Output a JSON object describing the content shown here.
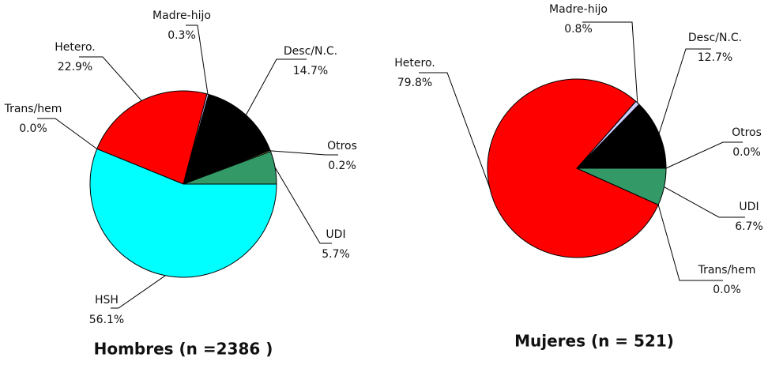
{
  "chart_data": [
    {
      "type": "pie",
      "title": "Hombres (n =2386 )",
      "categories": [
        "UDI",
        "Otros",
        "Desc/N.C.",
        "Madre-hijo",
        "Hetero.",
        "Trans/hem",
        "HSH"
      ],
      "values": [
        5.7,
        0.2,
        14.7,
        0.3,
        22.9,
        0.0,
        56.1
      ],
      "value_labels": [
        "5.7%",
        "0.2%",
        "14.7%",
        "0.3%",
        "22.9%",
        "0.0%",
        "56.1%"
      ],
      "colors": [
        "#339966",
        "#ffff99",
        "#000000",
        "#ccccff",
        "#ff0000",
        "#993366",
        "#00ffff"
      ]
    },
    {
      "type": "pie",
      "title": "Mujeres (n = 521)",
      "categories": [
        "Otros",
        "Desc/N.C.",
        "Madre-hijo",
        "Hetero.",
        "Trans/hem",
        "UDI"
      ],
      "values": [
        0.0,
        12.7,
        0.8,
        79.8,
        0.0,
        6.7
      ],
      "value_labels": [
        "0.0%",
        "12.7%",
        "0.8%",
        "79.8%",
        "0.0%",
        "6.7%"
      ],
      "colors": [
        "#ffff99",
        "#000000",
        "#ccccff",
        "#ff0000",
        "#993366",
        "#339966"
      ]
    }
  ]
}
